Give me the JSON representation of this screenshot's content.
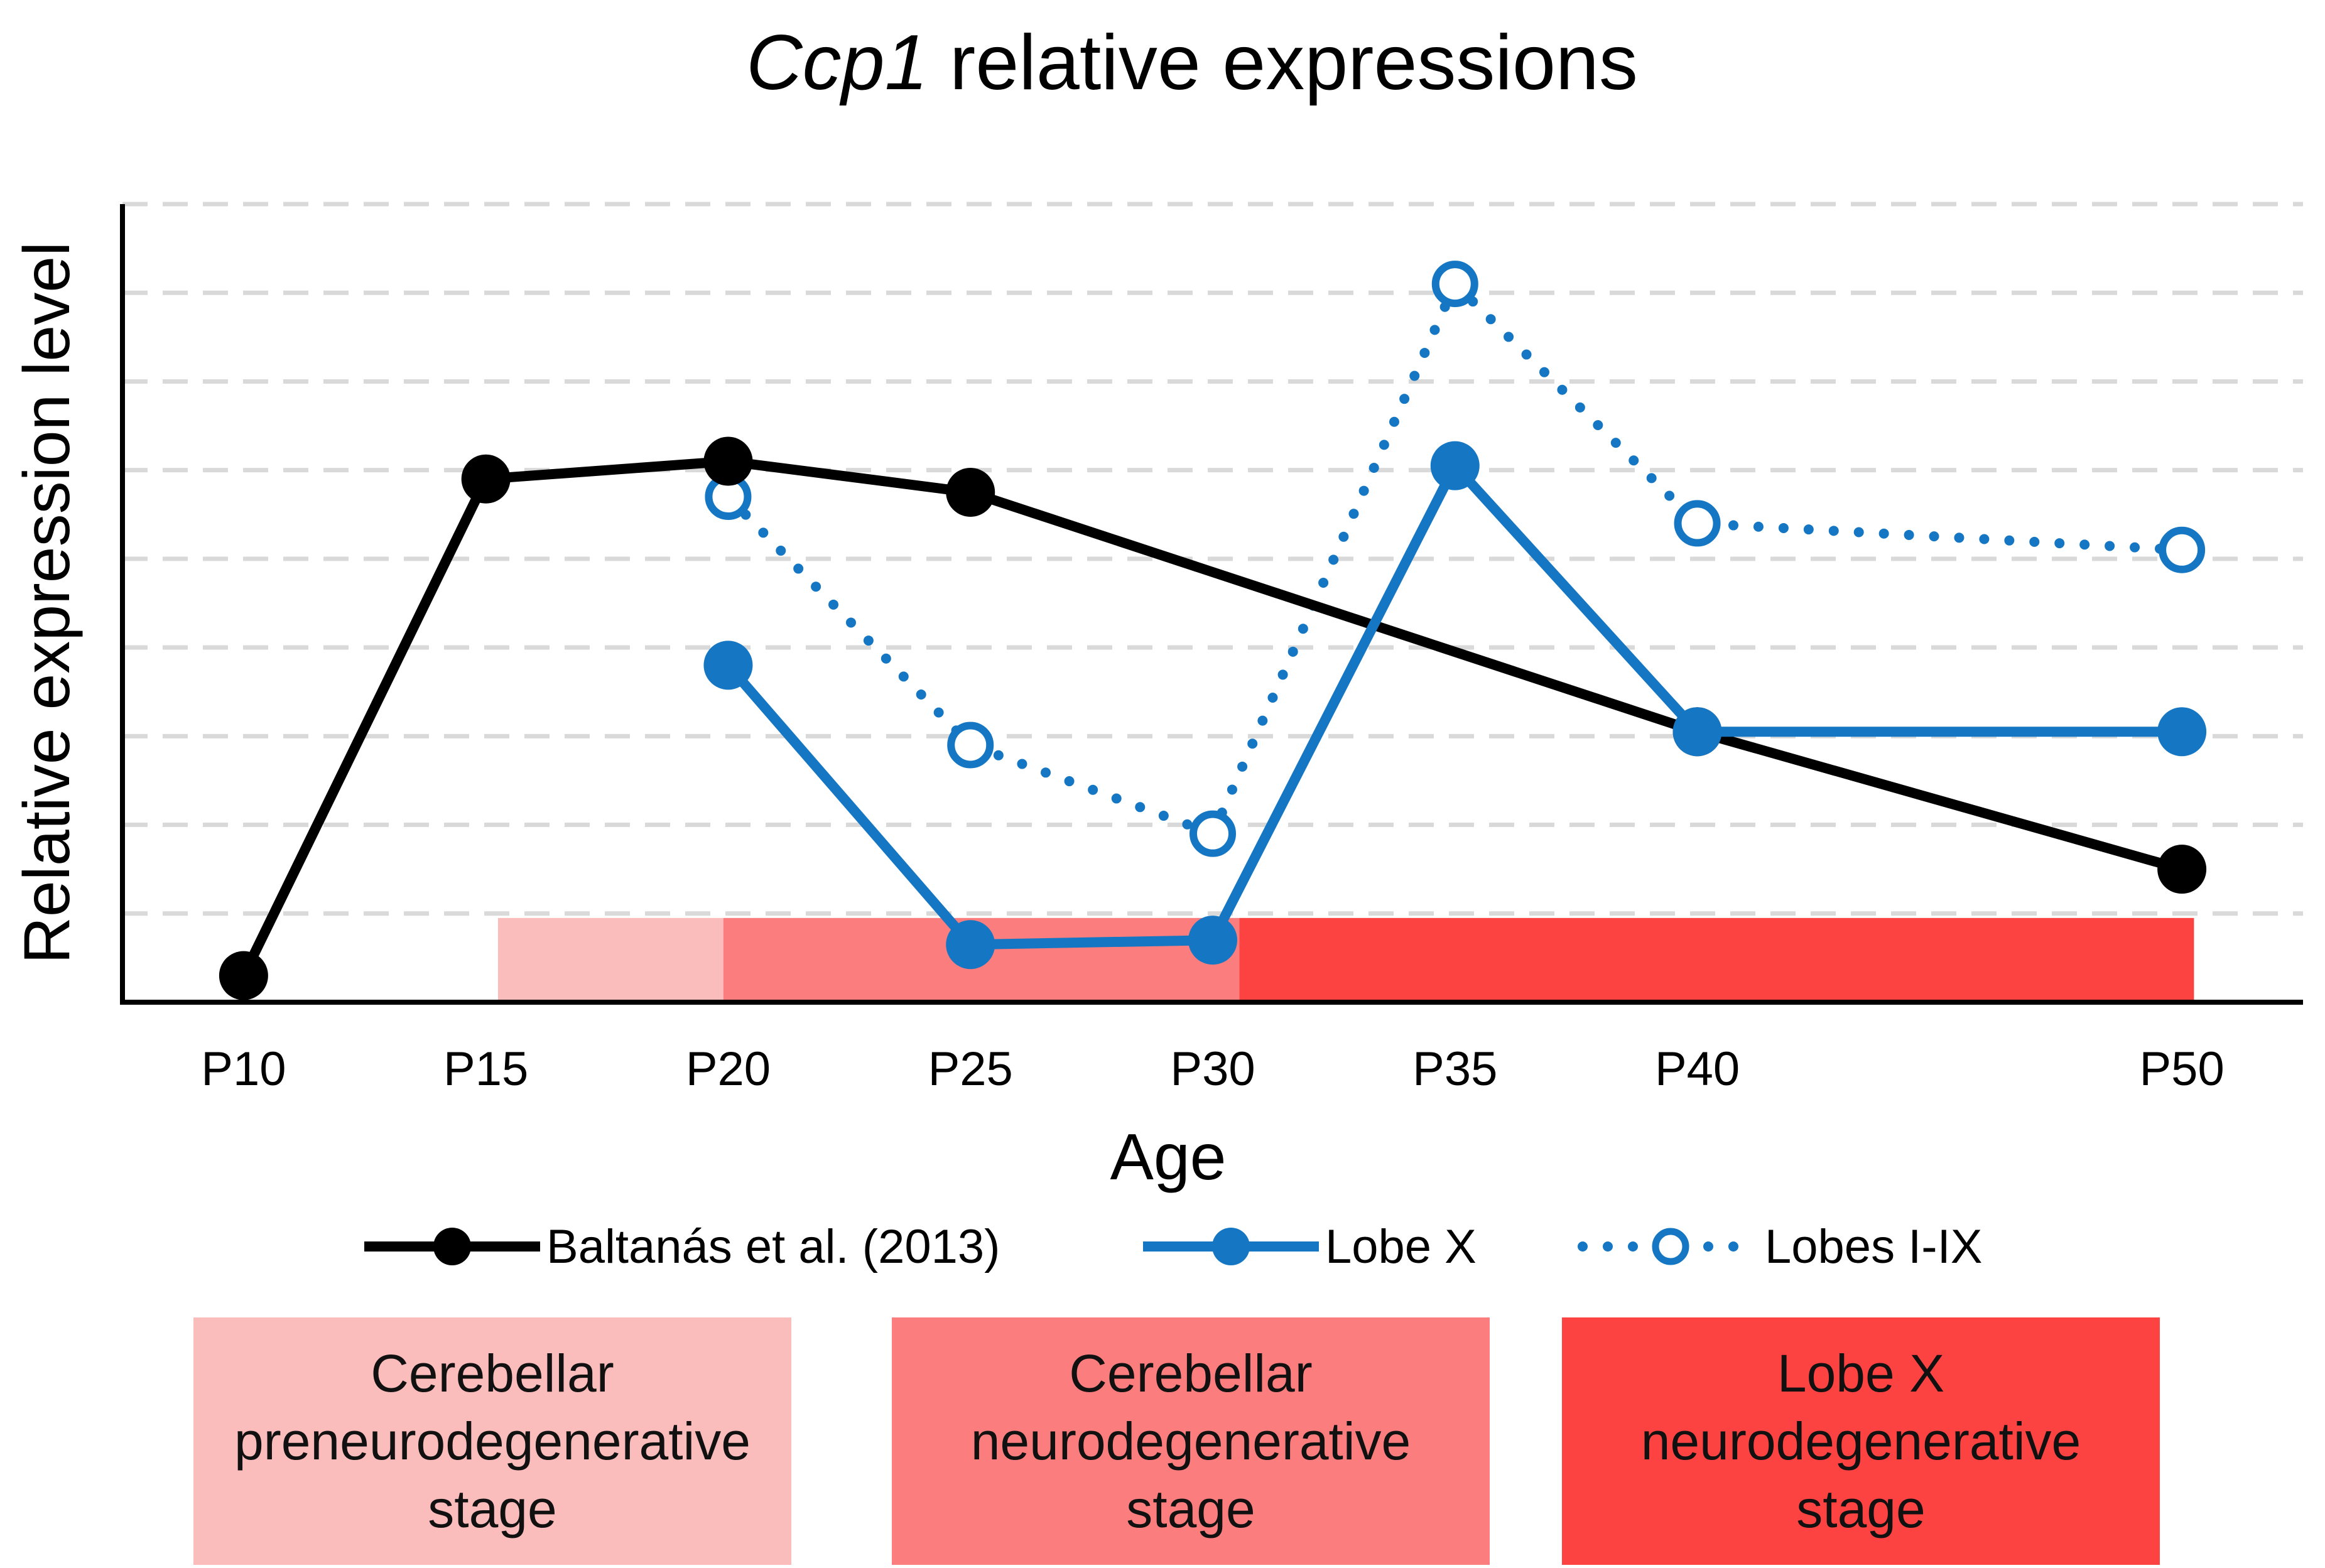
{
  "chart_data": {
    "type": "line",
    "title_italic": "Ccp1",
    "title_rest": " relative expressions",
    "xlabel": "Age",
    "ylabel": "Relative expression level",
    "categories": [
      "P10",
      "P15",
      "P20",
      "P25",
      "P30",
      "P35",
      "P40",
      "P50"
    ],
    "x_positions": [
      10,
      15,
      20,
      25,
      30,
      35,
      40,
      50
    ],
    "xlim": [
      7.5,
      52.5
    ],
    "ylim": [
      0,
      9
    ],
    "grid": "horizontal-dashed",
    "series": [
      {
        "name": "Baltanás et al. (2013)",
        "style": "solid",
        "marker": "filled",
        "color": "#000000",
        "x": [
          10,
          15,
          20,
          25,
          40,
          50
        ],
        "y": [
          0.3,
          5.9,
          6.1,
          5.75,
          3.05,
          1.5
        ]
      },
      {
        "name": "Lobe X",
        "style": "solid",
        "marker": "filled",
        "color": "#1577c4",
        "x": [
          20,
          25,
          30,
          35,
          40,
          50
        ],
        "y": [
          3.8,
          0.65,
          0.7,
          6.05,
          3.05,
          3.05
        ]
      },
      {
        "name": "Lobes I-IX",
        "style": "dotted",
        "marker": "open",
        "color": "#1577c4",
        "x": [
          20,
          25,
          30,
          35,
          40,
          50
        ],
        "y": [
          5.7,
          2.9,
          1.9,
          8.1,
          5.4,
          5.1
        ]
      }
    ],
    "stage_bands": [
      {
        "x_start": 15.25,
        "x_end": 19.9,
        "color": "#fbbcbc"
      },
      {
        "x_start": 19.9,
        "x_end": 30.55,
        "color": "#fb7d7d"
      },
      {
        "x_start": 30.55,
        "x_end": 50.25,
        "color": "#fd4242"
      }
    ]
  },
  "stages": [
    {
      "lines": [
        "Cerebellar",
        "preneurodegenerative",
        "stage"
      ],
      "color": "#fbbcbc"
    },
    {
      "lines": [
        "Cerebellar",
        "neurodegenerative",
        "stage"
      ],
      "color": "#fb7d7d"
    },
    {
      "lines": [
        "Lobe X",
        "neurodegenerative",
        "stage"
      ],
      "color": "#fd4242"
    }
  ]
}
